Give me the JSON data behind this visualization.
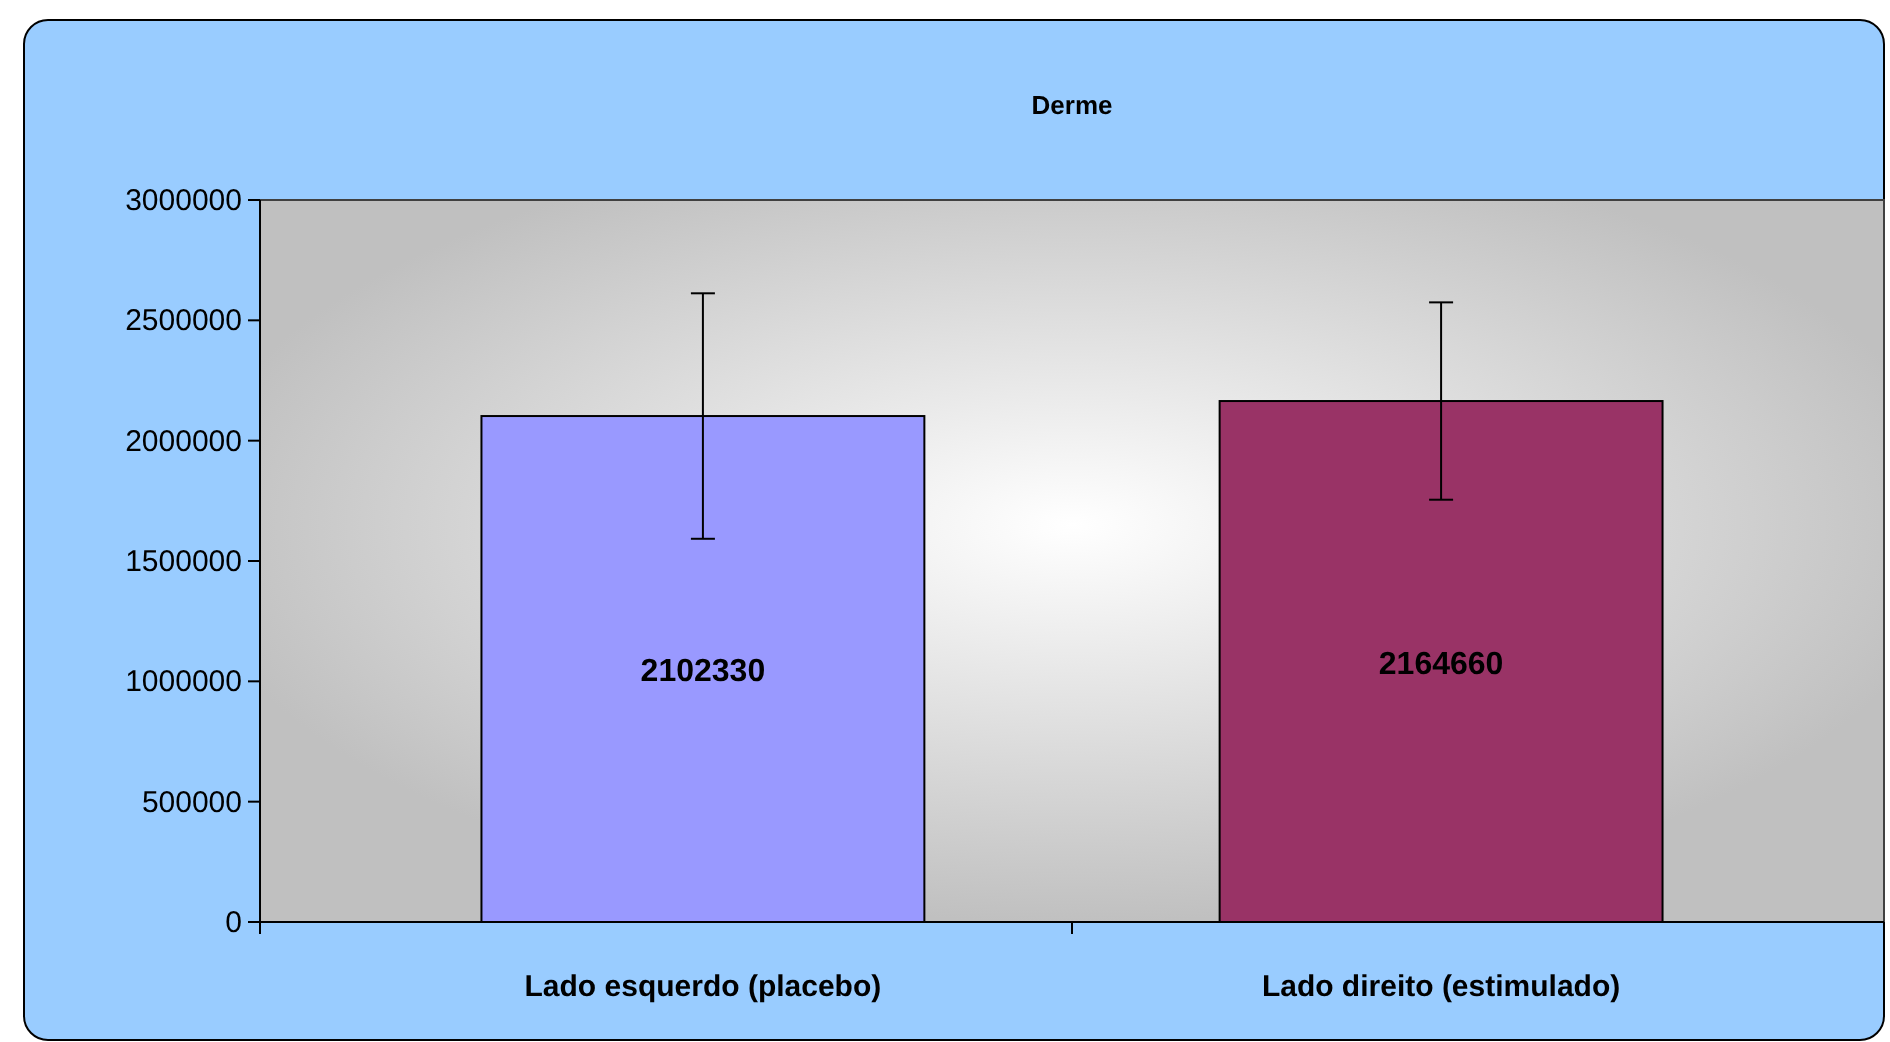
{
  "chart_data": {
    "type": "bar",
    "title": "Derme",
    "categories": [
      "Lado esquerdo (placebo)",
      "Lado direito (estimulado)"
    ],
    "values": [
      2102330,
      2164660
    ],
    "colors": [
      "#9999ff",
      "#993366"
    ],
    "errors": [
      510000,
      410000
    ],
    "ylim": [
      0,
      3000000
    ],
    "yticks": [
      0,
      500000,
      1000000,
      1500000,
      2000000,
      2500000,
      3000000
    ],
    "data_labels": true,
    "grid": false
  }
}
